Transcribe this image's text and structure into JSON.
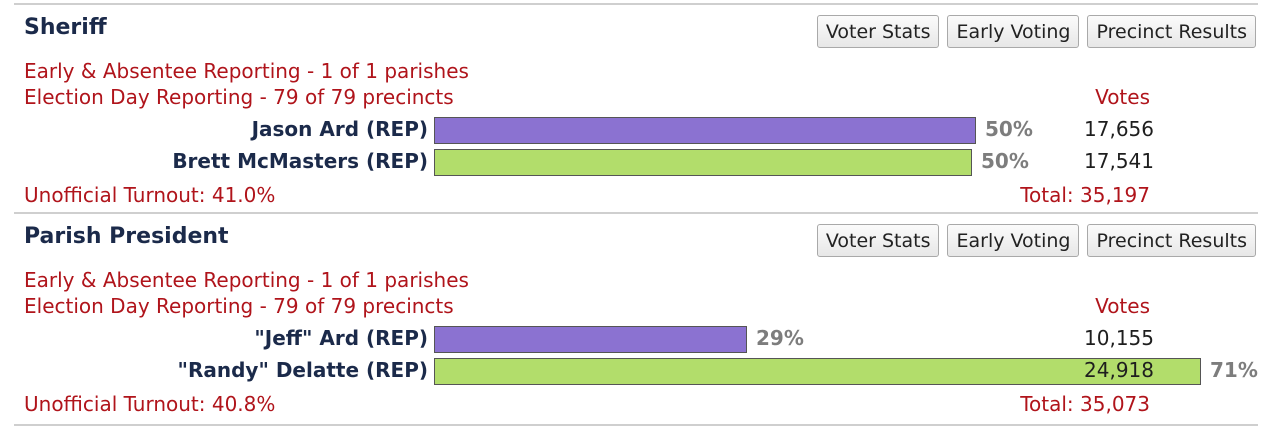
{
  "buttons": {
    "voter_stats": "Voter Stats",
    "early_voting": "Early Voting",
    "precinct_results": "Precinct Results"
  },
  "races": [
    {
      "title": "Sheriff",
      "early_reporting": "Early & Absentee Reporting - 1 of 1 parishes",
      "election_day_reporting": "Election Day Reporting - 79 of 79 precincts",
      "votes_header": "Votes",
      "candidates": [
        {
          "name": "Jason Ard (REP)",
          "percent": "50%",
          "share": 0.5016,
          "votes": "17,656",
          "color": "#8b72d1"
        },
        {
          "name": "Brett McMasters (REP)",
          "percent": "50%",
          "share": 0.4984,
          "votes": "17,541",
          "color": "#b2dd6b"
        }
      ],
      "turnout": "Unofficial Turnout: 41.0%",
      "total": "Total: 35,197"
    },
    {
      "title": "Parish President",
      "early_reporting": "Early & Absentee Reporting - 1 of 1 parishes",
      "election_day_reporting": "Election Day Reporting - 79 of 79 precincts",
      "votes_header": "Votes",
      "candidates": [
        {
          "name": "\"Jeff\" Ard (REP)",
          "percent": "29%",
          "share": 0.2895,
          "votes": "10,155",
          "color": "#8b72d1"
        },
        {
          "name": "\"Randy\" Delatte (REP)",
          "percent": "71%",
          "share": 0.7105,
          "votes": "24,918",
          "color": "#b2dd6b"
        }
      ],
      "turnout": "Unofficial Turnout: 40.8%",
      "total": "Total: 35,073"
    }
  ]
}
